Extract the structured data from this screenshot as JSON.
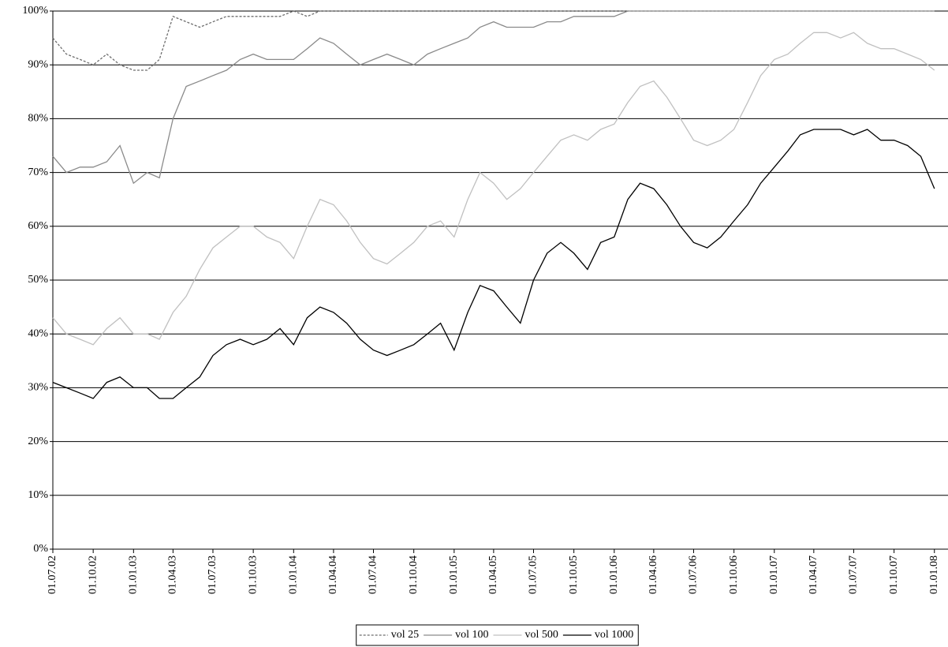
{
  "chart_data": {
    "type": "line",
    "x": [
      "01.07.02",
      "01.08.02",
      "01.09.02",
      "01.10.02",
      "01.11.02",
      "01.12.02",
      "01.01.03",
      "01.02.03",
      "01.03.03",
      "01.04.03",
      "01.05.03",
      "01.06.03",
      "01.07.03",
      "01.08.03",
      "01.09.03",
      "01.10.03",
      "01.11.03",
      "01.12.03",
      "01.01.04",
      "01.02.04",
      "01.03.04",
      "01.04.04",
      "01.05.04",
      "01.06.04",
      "01.07.04",
      "01.08.04",
      "01.09.04",
      "01.10.04",
      "01.11.04",
      "01.12.04",
      "01.01.05",
      "01.02.05",
      "01.03.05",
      "01.04.05",
      "01.05.05",
      "01.06.05",
      "01.07.05",
      "01.08.05",
      "01.09.05",
      "01.10.05",
      "01.11.05",
      "01.12.05",
      "01.01.06",
      "01.02.06",
      "01.03.06",
      "01.04.06",
      "01.05.06",
      "01.06.06",
      "01.07.06",
      "01.08.06",
      "01.09.06",
      "01.10.06",
      "01.11.06",
      "01.12.06",
      "01.01.07",
      "01.02.07",
      "01.03.07",
      "01.04.07",
      "01.05.07",
      "01.06.07",
      "01.07.07",
      "01.08.07",
      "01.09.07",
      "01.10.07",
      "01.11.07",
      "01.12.07",
      "01.01.08"
    ],
    "series": [
      {
        "name": "vol 25",
        "color": "#6e6e6e",
        "dash": "3,2",
        "values": [
          95,
          92,
          91,
          90,
          92,
          90,
          89,
          89,
          91,
          99,
          98,
          97,
          98,
          99,
          99,
          99,
          99,
          99,
          100,
          99,
          100,
          100,
          100,
          100,
          100,
          100,
          100,
          100,
          100,
          100,
          100,
          100,
          100,
          100,
          100,
          100,
          100,
          100,
          100,
          100,
          100,
          100,
          100,
          100,
          100,
          100,
          100,
          100,
          100,
          100,
          100,
          100,
          100,
          100,
          100,
          100,
          100,
          100,
          100,
          100,
          100,
          100,
          100,
          100,
          100,
          100,
          100
        ]
      },
      {
        "name": "vol 100",
        "color": "#8a8a8a",
        "values": [
          73,
          70,
          71,
          71,
          72,
          75,
          68,
          70,
          69,
          80,
          86,
          87,
          88,
          89,
          91,
          92,
          91,
          91,
          91,
          93,
          95,
          94,
          92,
          90,
          91,
          92,
          91,
          90,
          92,
          93,
          94,
          95,
          97,
          98,
          97,
          97,
          97,
          98,
          98,
          99,
          99,
          99,
          99,
          100,
          100,
          100,
          100,
          100,
          100,
          100,
          100,
          100,
          100,
          100,
          100,
          100,
          100,
          100,
          100,
          100,
          100,
          100,
          100,
          100,
          100,
          100,
          100
        ]
      },
      {
        "name": "vol 500",
        "color": "#c0c0c0",
        "values": [
          43,
          40,
          39,
          38,
          41,
          43,
          40,
          40,
          39,
          44,
          47,
          52,
          56,
          58,
          60,
          60,
          58,
          57,
          54,
          60,
          65,
          64,
          61,
          57,
          54,
          53,
          55,
          57,
          60,
          61,
          58,
          65,
          70,
          68,
          65,
          67,
          70,
          73,
          76,
          77,
          76,
          78,
          79,
          83,
          86,
          87,
          84,
          80,
          76,
          75,
          76,
          78,
          83,
          88,
          91,
          92,
          94,
          96,
          96,
          95,
          96,
          94,
          93,
          93,
          92,
          91,
          89
        ]
      },
      {
        "name": "vol 1000",
        "color": "#000000",
        "values": [
          31,
          30,
          29,
          28,
          31,
          32,
          30,
          30,
          28,
          28,
          30,
          32,
          36,
          38,
          39,
          38,
          39,
          41,
          38,
          43,
          45,
          44,
          42,
          39,
          37,
          36,
          37,
          38,
          40,
          42,
          37,
          44,
          49,
          48,
          45,
          42,
          50,
          55,
          57,
          55,
          52,
          57,
          58,
          65,
          68,
          67,
          64,
          60,
          57,
          56,
          58,
          61,
          64,
          68,
          71,
          74,
          77,
          78,
          78,
          78,
          77,
          78,
          76,
          76,
          75,
          73,
          67
        ]
      }
    ],
    "xlim": [
      "01.07.02",
      "01.02.08"
    ],
    "xticks": [
      "01.07.02",
      "01.10.02",
      "01.01.03",
      "01.04.03",
      "01.07.03",
      "01.10.03",
      "01.01.04",
      "01.04.04",
      "01.07.04",
      "01.10.04",
      "01.01.05",
      "01.04.05",
      "01.07.05",
      "01.10.05",
      "01.01.06",
      "01.04.06",
      "01.07.06",
      "01.10.06",
      "01.01.07",
      "01.04.07",
      "01.07.07",
      "01.10.07",
      "01.01.08"
    ],
    "ylim": [
      0,
      100
    ],
    "yticks": [
      {
        "value": 0,
        "label": "0%"
      },
      {
        "value": 10,
        "label": "10%"
      },
      {
        "value": 20,
        "label": "20%"
      },
      {
        "value": 30,
        "label": "30%"
      },
      {
        "value": 40,
        "label": "40%"
      },
      {
        "value": 50,
        "label": "50%"
      },
      {
        "value": 60,
        "label": "60%"
      },
      {
        "value": 70,
        "label": "70%"
      },
      {
        "value": 80,
        "label": "80%"
      },
      {
        "value": 90,
        "label": "90%"
      },
      {
        "value": 100,
        "label": "100%"
      }
    ],
    "grid": true,
    "legend": "lower center"
  }
}
